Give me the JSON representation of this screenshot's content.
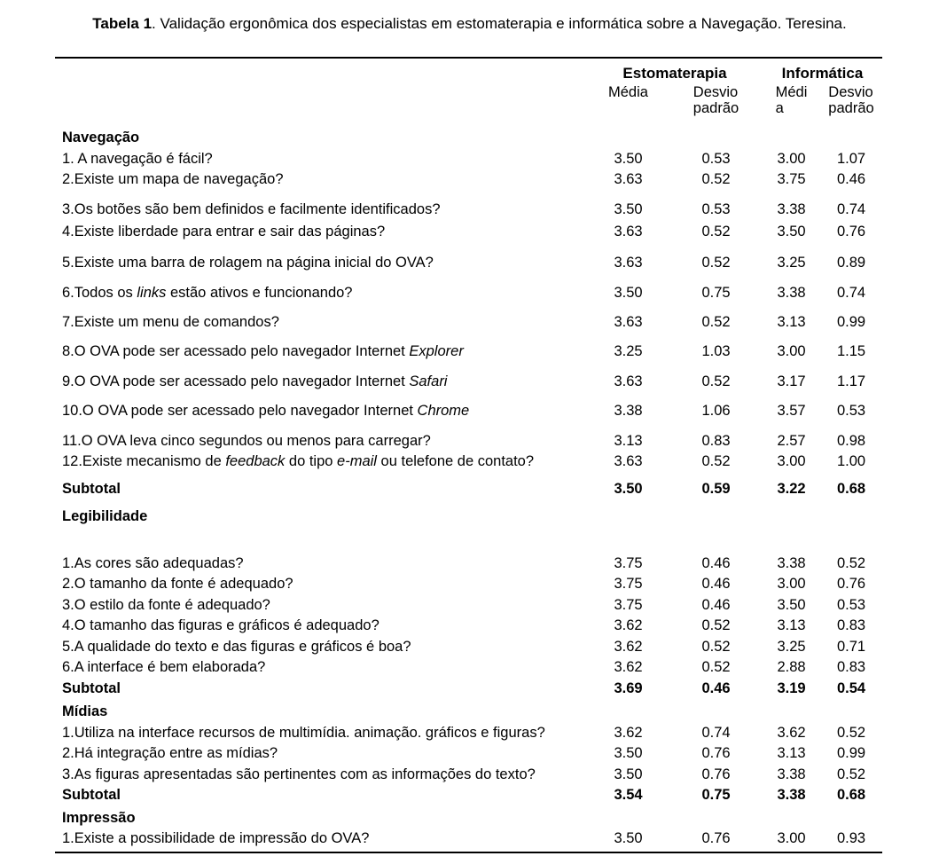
{
  "colors": {
    "text": "#000000",
    "background": "#ffffff"
  },
  "caption": {
    "bold": "Tabela 1",
    "rest": ". Validação ergonômica dos especialistas em estomaterapia e informática sobre a Navegação. Teresina."
  },
  "table": {
    "column_groups": [
      "Estomaterapia",
      "Informática"
    ],
    "column_headers": [
      "Média",
      "Desvio\npadrão",
      "Médi\na",
      "Desvio\npadrão"
    ],
    "sections": [
      {
        "name": "Navegação",
        "sp": 0,
        "rows": [
          {
            "label": "1. A navegação é fácil?",
            "values": [
              "3.50",
              "0.53",
              "3.00",
              "1.07"
            ],
            "sp": 0
          },
          {
            "label": "2.Existe um mapa de navegação?",
            "values": [
              "3.63",
              "0.52",
              "3.75",
              "0.46"
            ],
            "sp": 0
          },
          {
            "label": "3.Os botões são bem definidos e facilmente identificados?",
            "values": [
              "3.50",
              "0.53",
              "3.38",
              "0.74"
            ],
            "sp": 10
          },
          {
            "label": "4.Existe liberdade para entrar e sair das páginas?",
            "values": [
              "3.63",
              "0.52",
              "3.50",
              "0.76"
            ],
            "sp": 2
          },
          {
            "label": "5.Existe uma barra de rolagem na página inicial do OVA?",
            "values": [
              "3.63",
              "0.52",
              "3.25",
              "0.89"
            ],
            "sp": 11
          },
          {
            "label": "6.Todos os *links* estão ativos e funcionando?",
            "values": [
              "3.50",
              "0.75",
              "3.38",
              "0.74"
            ],
            "sp": 11
          },
          {
            "label": "7.Existe um menu de comandos?",
            "values": [
              "3.63",
              "0.52",
              "3.13",
              "0.99"
            ],
            "sp": 9
          },
          {
            "label": "8.O OVA pode ser acessado pelo navegador Internet *Explorer*",
            "values": [
              "3.25",
              "1.03",
              "3.00",
              "1.15"
            ],
            "sp": 10
          },
          {
            "label": "9.O OVA pode ser acessado pelo navegador Internet *Safari*",
            "values": [
              "3.63",
              "0.52",
              "3.17",
              "1.17"
            ],
            "sp": 10
          },
          {
            "label": "10.O OVA pode ser acessado pelo navegador Internet *Chrome*",
            "values": [
              "3.38",
              "1.06",
              "3.57",
              "0.53"
            ],
            "sp": 10
          },
          {
            "label": "11.O OVA leva cinco segundos ou menos para carregar?",
            "values": [
              "3.13",
              "0.83",
              "2.57",
              "0.98"
            ],
            "sp": 10
          },
          {
            "label": "12.Existe mecanismo de *feedback* do tipo *e-mail* ou telefone de contato?",
            "values": [
              "3.63",
              "0.52",
              "3.00",
              "1.00"
            ],
            "sp": 0
          }
        ],
        "subtotal": {
          "label": "Subtotal",
          "values": [
            "3.50",
            "0.59",
            "3.22",
            "0.68"
          ],
          "sp": 7
        }
      },
      {
        "name": "Legibilidade",
        "sp": 8,
        "rows": [
          {
            "label": "1.As cores são adequadas?",
            "values": [
              "3.75",
              "0.46",
              "3.38",
              "0.52"
            ],
            "sp": 29
          },
          {
            "label": "2.O tamanho da fonte é adequado?",
            "values": [
              "3.75",
              "0.46",
              "3.00",
              "0.76"
            ],
            "sp": 0
          },
          {
            "label": "3.O estilo da fonte é adequado?",
            "values": [
              "3.75",
              "0.46",
              "3.50",
              "0.53"
            ],
            "sp": 0
          },
          {
            "label": "4.O tamanho das figuras e gráficos é adequado?",
            "values": [
              "3.62",
              "0.52",
              "3.13",
              "0.83"
            ],
            "sp": 0
          },
          {
            "label": "5.A qualidade do texto e das figuras e gráficos é boa?",
            "values": [
              "3.62",
              "0.52",
              "3.25",
              "0.71"
            ],
            "sp": 0
          },
          {
            "label": "6.A interface é bem elaborada?",
            "values": [
              "3.62",
              "0.52",
              "2.88",
              "0.83"
            ],
            "sp": 0
          }
        ],
        "subtotal": {
          "label": "Subtotal",
          "values": [
            "3.69",
            "0.46",
            "3.19",
            "0.54"
          ],
          "sp": 0
        }
      },
      {
        "name": "Mídias",
        "sp": 3,
        "rows": [
          {
            "label": "1.Utiliza na interface recursos de multimídia. animação. gráficos e figuras?",
            "values": [
              "3.62",
              "0.74",
              "3.62",
              "0.52"
            ],
            "sp": 0
          },
          {
            "label": "2.Há integração entre as mídias?",
            "values": [
              "3.50",
              "0.76",
              "3.13",
              "0.99"
            ],
            "sp": 0
          },
          {
            "label": "3.As figuras apresentadas são pertinentes com as informações do texto?",
            "values": [
              "3.50",
              "0.76",
              "3.38",
              "0.52"
            ],
            "sp": 0
          }
        ],
        "subtotal": {
          "label": "Subtotal",
          "values": [
            "3.54",
            "0.75",
            "3.38",
            "0.68"
          ],
          "sp": 0
        }
      },
      {
        "name": "Impressão",
        "sp": 2,
        "rows": [
          {
            "label": "1.Existe a possibilidade de impressão do OVA?",
            "values": [
              "3.50",
              "0.76",
              "3.00",
              "0.93"
            ],
            "sp": 0
          }
        ]
      }
    ]
  }
}
